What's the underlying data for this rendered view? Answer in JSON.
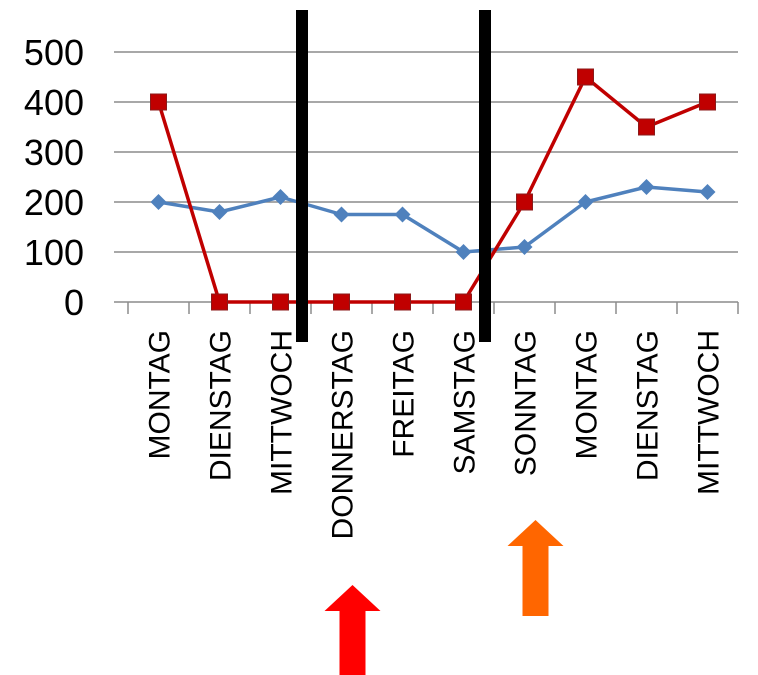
{
  "chart_data": {
    "type": "line",
    "categories": [
      "MONTAG",
      "DIENSTAG",
      "MITTWOCH",
      "DONNERSTAG",
      "FREITAG",
      "SAMSTAG",
      "SONNTAG",
      "MONTAG",
      "DIENSTAG",
      "MITTWOCH"
    ],
    "series": [
      {
        "values": [
          200,
          180,
          210,
          175,
          175,
          100,
          110,
          200,
          230,
          220
        ],
        "color": "#4F81BD",
        "marker": "diamond"
      },
      {
        "values": [
          400,
          0,
          0,
          0,
          0,
          0,
          200,
          450,
          350,
          400
        ],
        "color": "#C00000",
        "marker": "square"
      }
    ],
    "ylim": [
      0,
      500
    ],
    "yticks": [
      0,
      100,
      200,
      300,
      400,
      500
    ],
    "grid": true,
    "annotations": {
      "vertical_bars_after_categories": [
        2,
        5
      ],
      "arrows": [
        {
          "under_category": 3,
          "color": "#FF0000"
        },
        {
          "under_category": 6,
          "color": "#FF6600"
        }
      ]
    }
  }
}
